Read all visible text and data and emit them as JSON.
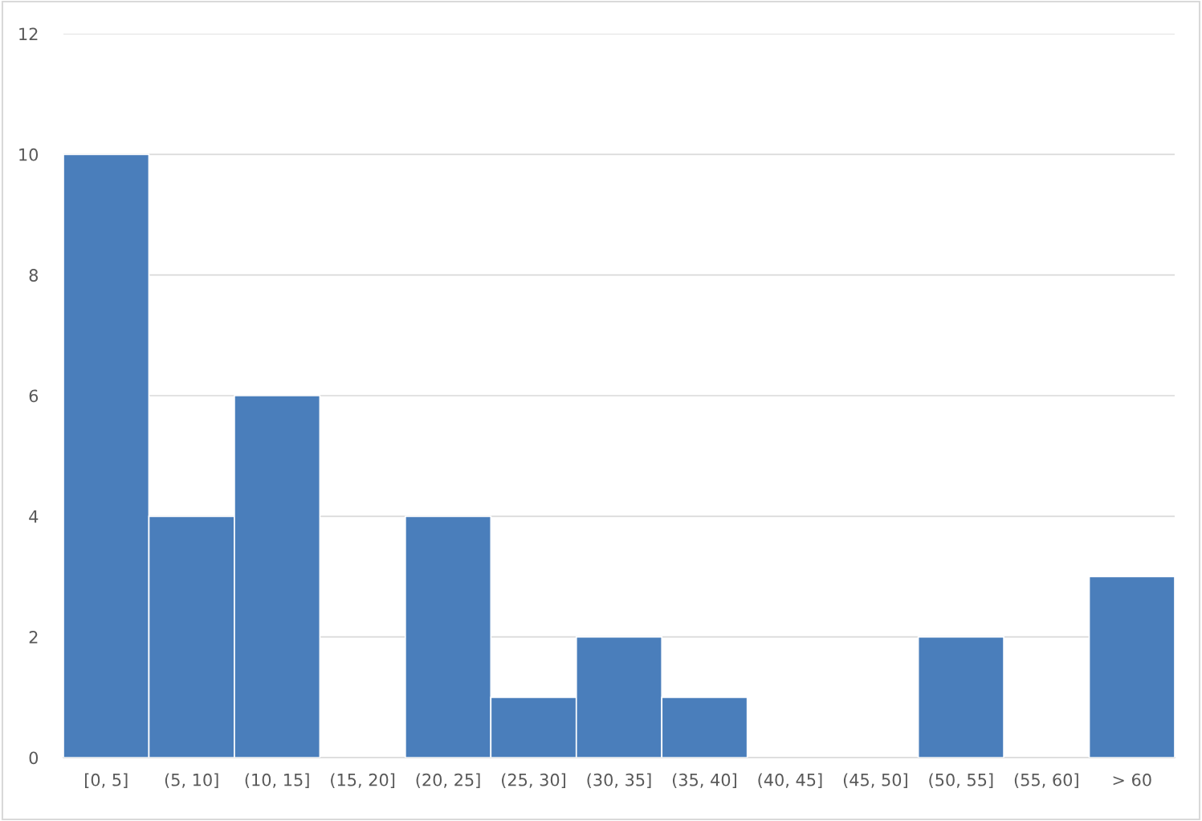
{
  "chart_data": {
    "type": "bar",
    "categories": [
      "[0, 5]",
      "(5, 10]",
      "(10, 15]",
      "(15, 20]",
      "(20, 25]",
      "(25, 30]",
      "(30, 35]",
      "(35, 40]",
      "(40, 45]",
      "(45, 50]",
      "(50, 55]",
      "(55, 60]",
      "> 60"
    ],
    "values": [
      10,
      4,
      6,
      0,
      4,
      1,
      2,
      1,
      0,
      0,
      2,
      0,
      3
    ],
    "color": "#4a7ebb",
    "ylim": [
      0,
      12
    ],
    "yticks": [
      0,
      2,
      4,
      6,
      8,
      10,
      12
    ],
    "grid": "y"
  }
}
